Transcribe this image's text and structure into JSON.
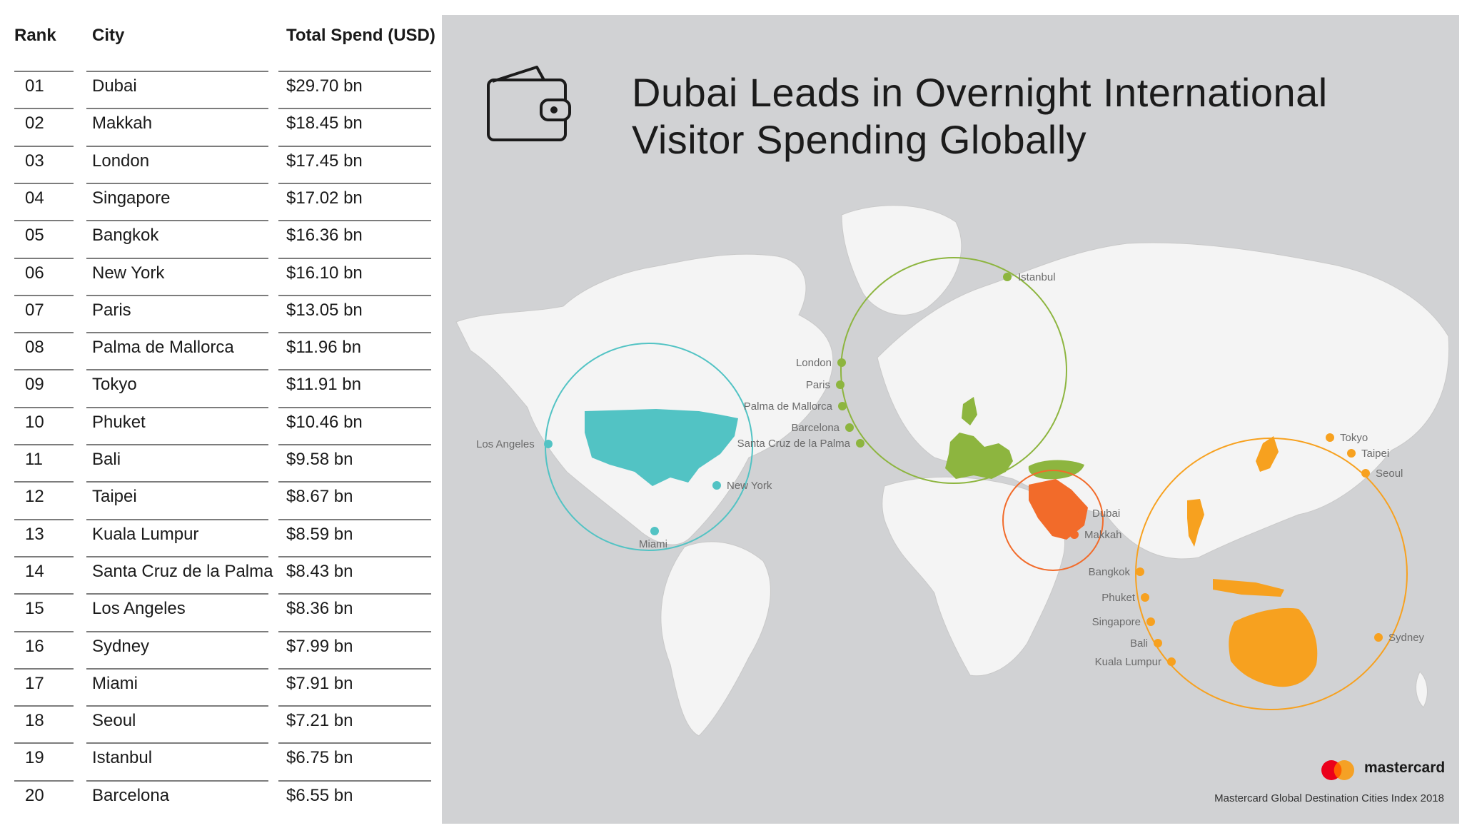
{
  "table": {
    "headers": {
      "rank": "Rank",
      "city": "City",
      "spend": "Total Spend (USD)"
    },
    "rows": [
      {
        "rank": "01",
        "city": "Dubai",
        "spend": "$29.70 bn"
      },
      {
        "rank": "02",
        "city": "Makkah",
        "spend": "$18.45 bn"
      },
      {
        "rank": "03",
        "city": "London",
        "spend": "$17.45 bn"
      },
      {
        "rank": "04",
        "city": "Singapore",
        "spend": "$17.02 bn"
      },
      {
        "rank": "05",
        "city": "Bangkok",
        "spend": "$16.36 bn"
      },
      {
        "rank": "06",
        "city": "New York",
        "spend": "$16.10 bn"
      },
      {
        "rank": "07",
        "city": "Paris",
        "spend": "$13.05 bn"
      },
      {
        "rank": "08",
        "city": "Palma de Mallorca",
        "spend": "$11.96 bn"
      },
      {
        "rank": "09",
        "city": "Tokyo",
        "spend": "$11.91 bn"
      },
      {
        "rank": "10",
        "city": "Phuket",
        "spend": "$10.46 bn"
      },
      {
        "rank": "11",
        "city": "Bali",
        "spend": "$9.58 bn"
      },
      {
        "rank": "12",
        "city": "Taipei",
        "spend": "$8.67 bn"
      },
      {
        "rank": "13",
        "city": "Kuala Lumpur",
        "spend": "$8.59 bn"
      },
      {
        "rank": "14",
        "city": "Santa Cruz de la Palma",
        "spend": "$8.43 bn"
      },
      {
        "rank": "15",
        "city": "Los Angeles",
        "spend": "$8.36 bn"
      },
      {
        "rank": "16",
        "city": "Sydney",
        "spend": "$7.99 bn"
      },
      {
        "rank": "17",
        "city": "Miami",
        "spend": "$7.91 bn"
      },
      {
        "rank": "18",
        "city": "Seoul",
        "spend": "$7.21 bn"
      },
      {
        "rank": "19",
        "city": "Istanbul",
        "spend": "$6.75 bn"
      },
      {
        "rank": "20",
        "city": "Barcelona",
        "spend": "$6.55 bn"
      }
    ]
  },
  "headline": {
    "line1": "Dubai Leads in Overnight International",
    "line2": "Visitor Spending Globally"
  },
  "icons": {
    "wallet": "wallet-icon",
    "logo": "mastercard-logo"
  },
  "colors": {
    "panel_bg": "#d1d2d4",
    "land": "#f4f4f4",
    "americas": "#52c3c4",
    "europe": "#8db53f",
    "middle_east": "#f26b2a",
    "asia_pacific": "#f7a11f",
    "logo_red": "#eb001b",
    "logo_orange": "#f79e1b"
  },
  "map": {
    "americas_labels": [
      "Los Angeles",
      "New York",
      "Miami"
    ],
    "europe_labels": [
      "Istanbul",
      "London",
      "Paris",
      "Palma de Mallorca",
      "Barcelona",
      "Santa Cruz de la Palma"
    ],
    "middle_east_labels": [
      "Dubai",
      "Makkah"
    ],
    "asia_labels": [
      "Tokyo",
      "Taipei",
      "Seoul",
      "Bangkok",
      "Phuket",
      "Singapore",
      "Bali",
      "Kuala Lumpur",
      "Sydney"
    ]
  },
  "footer": {
    "brand": "mastercard",
    "source": "Mastercard Global Destination Cities Index 2018"
  }
}
